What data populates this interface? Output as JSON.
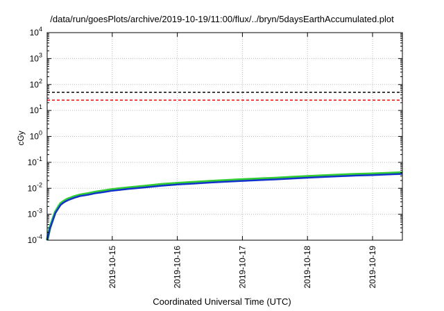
{
  "chart_data": {
    "type": "line",
    "title": "/data/run/goesPlots/archive/2019-10-19/11:00/flux/../bryn/5daysEarthAccumulated.plot",
    "xlabel": "Coordinated Universal Time (UTC)",
    "ylabel": "cGy",
    "y_scale": "log",
    "ylim": [
      0.0001,
      10000
    ],
    "y_ticks": [
      {
        "base": "10",
        "exp": "-4",
        "value": 0.0001
      },
      {
        "base": "10",
        "exp": "-3",
        "value": 0.001
      },
      {
        "base": "10",
        "exp": "-2",
        "value": 0.01
      },
      {
        "base": "10",
        "exp": "-1",
        "value": 0.1
      },
      {
        "base": "10",
        "exp": "0",
        "value": 1
      },
      {
        "base": "10",
        "exp": "1",
        "value": 10
      },
      {
        "base": "10",
        "exp": "2",
        "value": 100
      },
      {
        "base": "10",
        "exp": "3",
        "value": 1000
      },
      {
        "base": "10",
        "exp": "4",
        "value": 10000
      }
    ],
    "xlim": [
      "2019-10-14 00:00",
      "2019-10-19 11:00"
    ],
    "x_ticks": [
      "2019-10-15",
      "2019-10-16",
      "2019-10-17",
      "2019-10-18",
      "2019-10-19"
    ],
    "grid": true,
    "thresholds": [
      {
        "value": 50,
        "color": "#000000",
        "style": "dashed"
      },
      {
        "value": 25,
        "color": "#ff0000",
        "style": "dashed"
      }
    ],
    "series": [
      {
        "color": "#33cc33",
        "x": [
          "2019-10-14 00:00",
          "2019-10-14 01:00",
          "2019-10-14 02:00",
          "2019-10-14 03:00",
          "2019-10-14 04:00",
          "2019-10-14 05:00",
          "2019-10-14 06:00",
          "2019-10-14 07:00",
          "2019-10-14 08:00",
          "2019-10-14 10:00",
          "2019-10-14 12:00",
          "2019-10-14 15:00",
          "2019-10-14 18:00",
          "2019-10-14 21:00",
          "2019-10-15 00:00",
          "2019-10-15 06:00",
          "2019-10-15 12:00",
          "2019-10-15 18:00",
          "2019-10-16 00:00",
          "2019-10-16 06:00",
          "2019-10-16 12:00",
          "2019-10-16 18:00",
          "2019-10-17 00:00",
          "2019-10-17 06:00",
          "2019-10-17 12:00",
          "2019-10-17 18:00",
          "2019-10-18 00:00",
          "2019-10-18 06:00",
          "2019-10-18 12:00",
          "2019-10-18 18:00",
          "2019-10-19 00:00",
          "2019-10-19 06:00",
          "2019-10-19 11:00"
        ],
        "y": [
          0.0001,
          0.0003,
          0.0006,
          0.0012,
          0.0018,
          0.0026,
          0.0031,
          0.0036,
          0.004,
          0.0048,
          0.0055,
          0.0062,
          0.0072,
          0.008,
          0.009,
          0.0105,
          0.012,
          0.014,
          0.0155,
          0.017,
          0.0185,
          0.02,
          0.0215,
          0.023,
          0.0245,
          0.0265,
          0.0285,
          0.0305,
          0.0325,
          0.0345,
          0.036,
          0.038,
          0.04
        ]
      },
      {
        "color": "#1133cc",
        "x": [
          "2019-10-14 00:00",
          "2019-10-14 01:00",
          "2019-10-14 02:00",
          "2019-10-14 03:00",
          "2019-10-14 04:00",
          "2019-10-14 05:00",
          "2019-10-14 06:00",
          "2019-10-14 07:00",
          "2019-10-14 08:00",
          "2019-10-14 10:00",
          "2019-10-14 12:00",
          "2019-10-14 15:00",
          "2019-10-14 18:00",
          "2019-10-14 21:00",
          "2019-10-15 00:00",
          "2019-10-15 06:00",
          "2019-10-15 12:00",
          "2019-10-15 18:00",
          "2019-10-16 00:00",
          "2019-10-16 06:00",
          "2019-10-16 12:00",
          "2019-10-16 18:00",
          "2019-10-17 00:00",
          "2019-10-17 06:00",
          "2019-10-17 12:00",
          "2019-10-17 18:00",
          "2019-10-18 00:00",
          "2019-10-18 06:00",
          "2019-10-18 12:00",
          "2019-10-18 18:00",
          "2019-10-19 00:00",
          "2019-10-19 06:00",
          "2019-10-19 11:00"
        ],
        "y": [
          0.0001,
          0.00028,
          0.00055,
          0.0011,
          0.0016,
          0.0023,
          0.0028,
          0.0032,
          0.0036,
          0.0043,
          0.005,
          0.0056,
          0.0065,
          0.0072,
          0.0081,
          0.0095,
          0.0108,
          0.0125,
          0.014,
          0.0152,
          0.0166,
          0.018,
          0.0193,
          0.0206,
          0.022,
          0.0238,
          0.0256,
          0.0274,
          0.0292,
          0.031,
          0.0324,
          0.0342,
          0.036
        ]
      }
    ]
  }
}
